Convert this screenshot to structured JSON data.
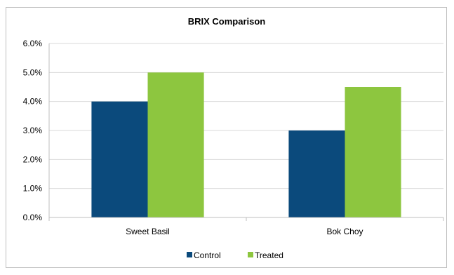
{
  "chart_data": {
    "type": "bar",
    "title": "BRIX Comparison",
    "categories": [
      "Sweet Basil",
      "Bok Choy"
    ],
    "series": [
      {
        "name": "Control",
        "values": [
          4.0,
          3.0
        ],
        "color": "#0b4a7c"
      },
      {
        "name": "Treated",
        "values": [
          5.0,
          4.5
        ],
        "color": "#8dc63f"
      }
    ],
    "ylim": [
      0,
      6
    ],
    "yticks": [
      {
        "value": 0,
        "label": "0.0%"
      },
      {
        "value": 1,
        "label": "1.0%"
      },
      {
        "value": 2,
        "label": "2.0%"
      },
      {
        "value": 3,
        "label": "3.0%"
      },
      {
        "value": 4,
        "label": "4.0%"
      },
      {
        "value": 5,
        "label": "5.0%"
      },
      {
        "value": 6,
        "label": "6.0%"
      }
    ],
    "grid": true,
    "legend": "bottom"
  }
}
